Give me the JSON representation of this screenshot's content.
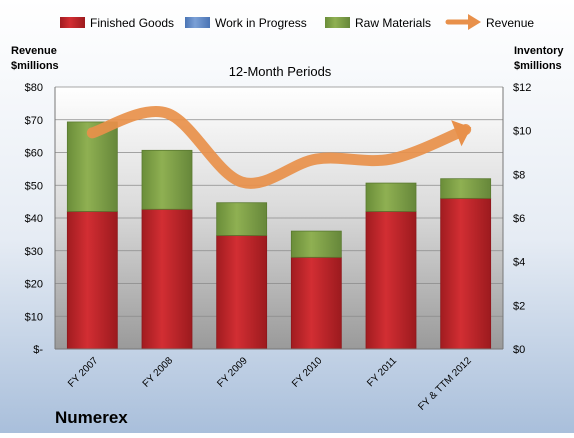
{
  "chart_data": {
    "type": "bar",
    "title": "12-Month Periods",
    "company": "Numerex",
    "categories": [
      "FY 2007",
      "FY 2008",
      "FY 2009",
      "FY 2010",
      "FY 2011",
      "FY & TTM 2012"
    ],
    "series": [
      {
        "name": "Finished Goods",
        "axis": "right",
        "stacked": true,
        "values": [
          6.3,
          6.4,
          5.2,
          4.2,
          6.3,
          6.9
        ]
      },
      {
        "name": "Work in Progress",
        "axis": "right",
        "stacked": true,
        "values": [
          0,
          0,
          0,
          0,
          0,
          0
        ]
      },
      {
        "name": "Raw Materials",
        "axis": "right",
        "stacked": true,
        "values": [
          4.1,
          2.7,
          1.5,
          1.2,
          1.3,
          0.9
        ]
      },
      {
        "name": "Revenue",
        "axis": "left",
        "type": "line",
        "values": [
          66,
          72,
          51,
          58,
          58,
          67
        ]
      }
    ],
    "y_left": {
      "label": [
        "Revenue",
        "$millions"
      ],
      "ylim": [
        0,
        80
      ],
      "ticks": [
        0,
        10,
        20,
        30,
        40,
        50,
        60,
        70,
        80
      ],
      "tick_labels": [
        "$-",
        "$10",
        "$20",
        "$30",
        "$40",
        "$50",
        "$60",
        "$70",
        "$80"
      ]
    },
    "y_right": {
      "label": [
        "Inventory",
        "$millions"
      ],
      "ylim": [
        0,
        12
      ],
      "ticks": [
        0,
        2,
        4,
        6,
        8,
        10,
        12
      ],
      "tick_labels": [
        "$0",
        "$2",
        "$4",
        "$6",
        "$8",
        "$10",
        "$12"
      ]
    },
    "grid": true,
    "legend_position": "top",
    "colors": {
      "Finished Goods": "#c0262a",
      "Work in Progress": "#5b86c5",
      "Raw Materials": "#7fa046",
      "Revenue": "#e8904a"
    }
  }
}
